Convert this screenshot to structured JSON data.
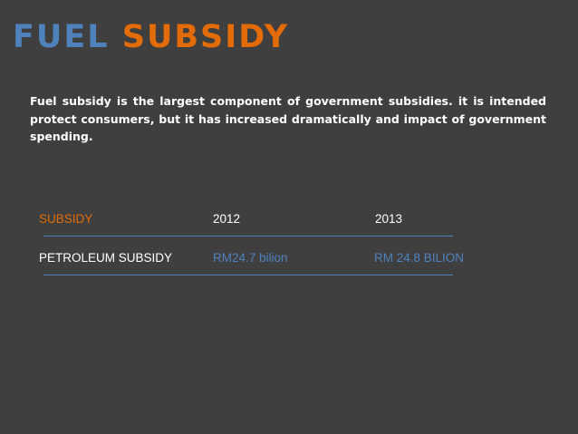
{
  "slide": {
    "title_part1": "FUEL",
    "title_part2": "SUBSIDY",
    "body_text": "Fuel subsidy is the largest component of government subsidies. it is intended protect consumers, but it has increased dramatically and impact of government spending."
  },
  "table": {
    "header": [
      "SUBSIDY",
      "2012",
      "2013"
    ],
    "rows": [
      [
        "PETROLEUM SUBSIDY",
        "RM24.7 bilion",
        "RM 24.8 BILION"
      ]
    ]
  },
  "colors": {
    "background": "#3f3f3f",
    "title_blue": "#4f81bd",
    "accent_orange": "#e36c09",
    "text_white": "#ffffff"
  }
}
